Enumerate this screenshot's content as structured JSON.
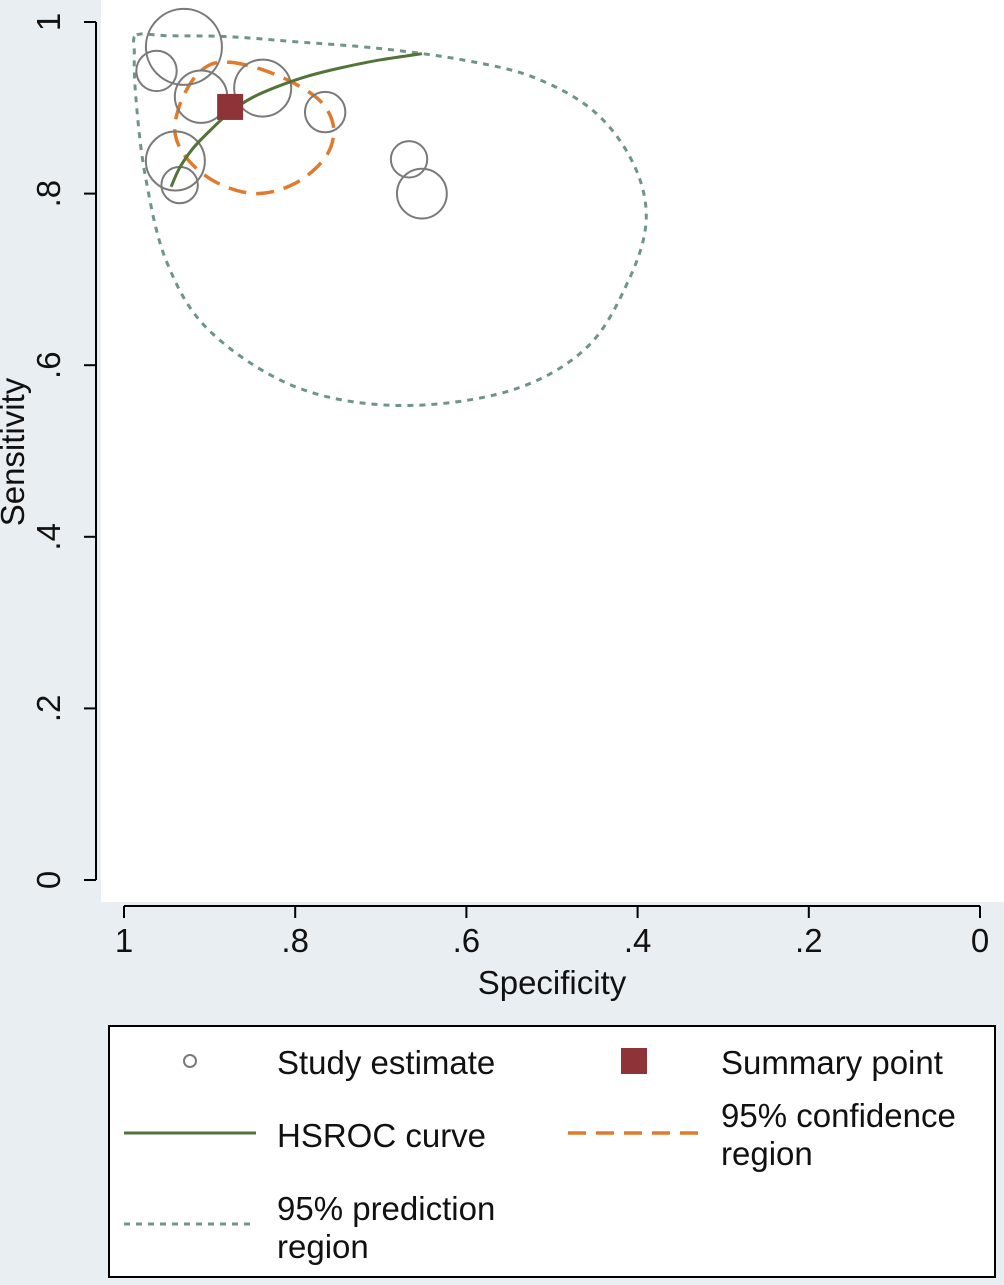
{
  "colors": {
    "background": "#e9eef2",
    "plot_background": "#ffffff",
    "study": "#7a7a7a",
    "summary": "#8e3438",
    "hsroc": "#52733a",
    "confidence": "#e07b2e",
    "prediction": "#6f958a"
  },
  "chart_data": {
    "type": "scatter",
    "xlabel": "Specificity",
    "ylabel": "Sensitivity",
    "xlim": [
      1,
      0
    ],
    "ylim": [
      0,
      1
    ],
    "x_reversed": true,
    "xticks": [
      1,
      0.8,
      0.6,
      0.4,
      0.2,
      0
    ],
    "xtick_labels": [
      "1",
      ".8",
      ".6",
      ".4",
      ".2",
      "0"
    ],
    "yticks": [
      0,
      0.2,
      0.4,
      0.6,
      0.8,
      1
    ],
    "ytick_labels": [
      "0",
      ".2",
      ".4",
      ".6",
      ".8",
      "1"
    ],
    "grid": false,
    "legend_position": "bottom",
    "studies": [
      {
        "specificity": 0.93,
        "sensitivity": 0.971,
        "weight": 1.0
      },
      {
        "specificity": 0.962,
        "sensitivity": 0.943,
        "weight": 0.15
      },
      {
        "specificity": 0.91,
        "sensitivity": 0.913,
        "weight": 0.35
      },
      {
        "specificity": 0.838,
        "sensitivity": 0.923,
        "weight": 0.45
      },
      {
        "specificity": 0.765,
        "sensitivity": 0.895,
        "weight": 0.15
      },
      {
        "specificity": 0.94,
        "sensitivity": 0.838,
        "weight": 0.5
      },
      {
        "specificity": 0.935,
        "sensitivity": 0.81,
        "weight": 0.1
      },
      {
        "specificity": 0.667,
        "sensitivity": 0.84,
        "weight": 0.1
      },
      {
        "specificity": 0.652,
        "sensitivity": 0.8,
        "weight": 0.3
      }
    ],
    "summary_point": {
      "specificity": 0.876,
      "sensitivity": 0.901
    },
    "hsroc_curve": [
      [
        0.945,
        0.808
      ],
      [
        0.935,
        0.83
      ],
      [
        0.92,
        0.852
      ],
      [
        0.9,
        0.873
      ],
      [
        0.876,
        0.895
      ],
      [
        0.85,
        0.912
      ],
      [
        0.82,
        0.925
      ],
      [
        0.785,
        0.937
      ],
      [
        0.745,
        0.947
      ],
      [
        0.7,
        0.956
      ],
      [
        0.652,
        0.963
      ]
    ],
    "confidence_region": [
      [
        0.876,
        0.953
      ],
      [
        0.84,
        0.945
      ],
      [
        0.8,
        0.928
      ],
      [
        0.768,
        0.905
      ],
      [
        0.755,
        0.875
      ],
      [
        0.765,
        0.842
      ],
      [
        0.8,
        0.812
      ],
      [
        0.845,
        0.8
      ],
      [
        0.89,
        0.812
      ],
      [
        0.924,
        0.838
      ],
      [
        0.94,
        0.868
      ],
      [
        0.936,
        0.9
      ],
      [
        0.92,
        0.932
      ],
      [
        0.9,
        0.95
      ]
    ],
    "prediction_region": [
      [
        0.985,
        0.985
      ],
      [
        0.95,
        0.984
      ],
      [
        0.88,
        0.983
      ],
      [
        0.8,
        0.977
      ],
      [
        0.7,
        0.969
      ],
      [
        0.6,
        0.955
      ],
      [
        0.52,
        0.935
      ],
      [
        0.45,
        0.895
      ],
      [
        0.405,
        0.835
      ],
      [
        0.39,
        0.77
      ],
      [
        0.41,
        0.7
      ],
      [
        0.46,
        0.62
      ],
      [
        0.55,
        0.57
      ],
      [
        0.68,
        0.553
      ],
      [
        0.8,
        0.575
      ],
      [
        0.9,
        0.64
      ],
      [
        0.95,
        0.72
      ],
      [
        0.975,
        0.82
      ],
      [
        0.986,
        0.91
      ],
      [
        0.988,
        0.965
      ]
    ]
  },
  "legend": {
    "study_estimate": "Study estimate",
    "summary_point": "Summary point",
    "hsroc_curve": "HSROC curve",
    "confidence_region_line1": "95% confidence",
    "confidence_region_line2": "region",
    "prediction_region_line1": "95% prediction",
    "prediction_region_line2": "region"
  }
}
